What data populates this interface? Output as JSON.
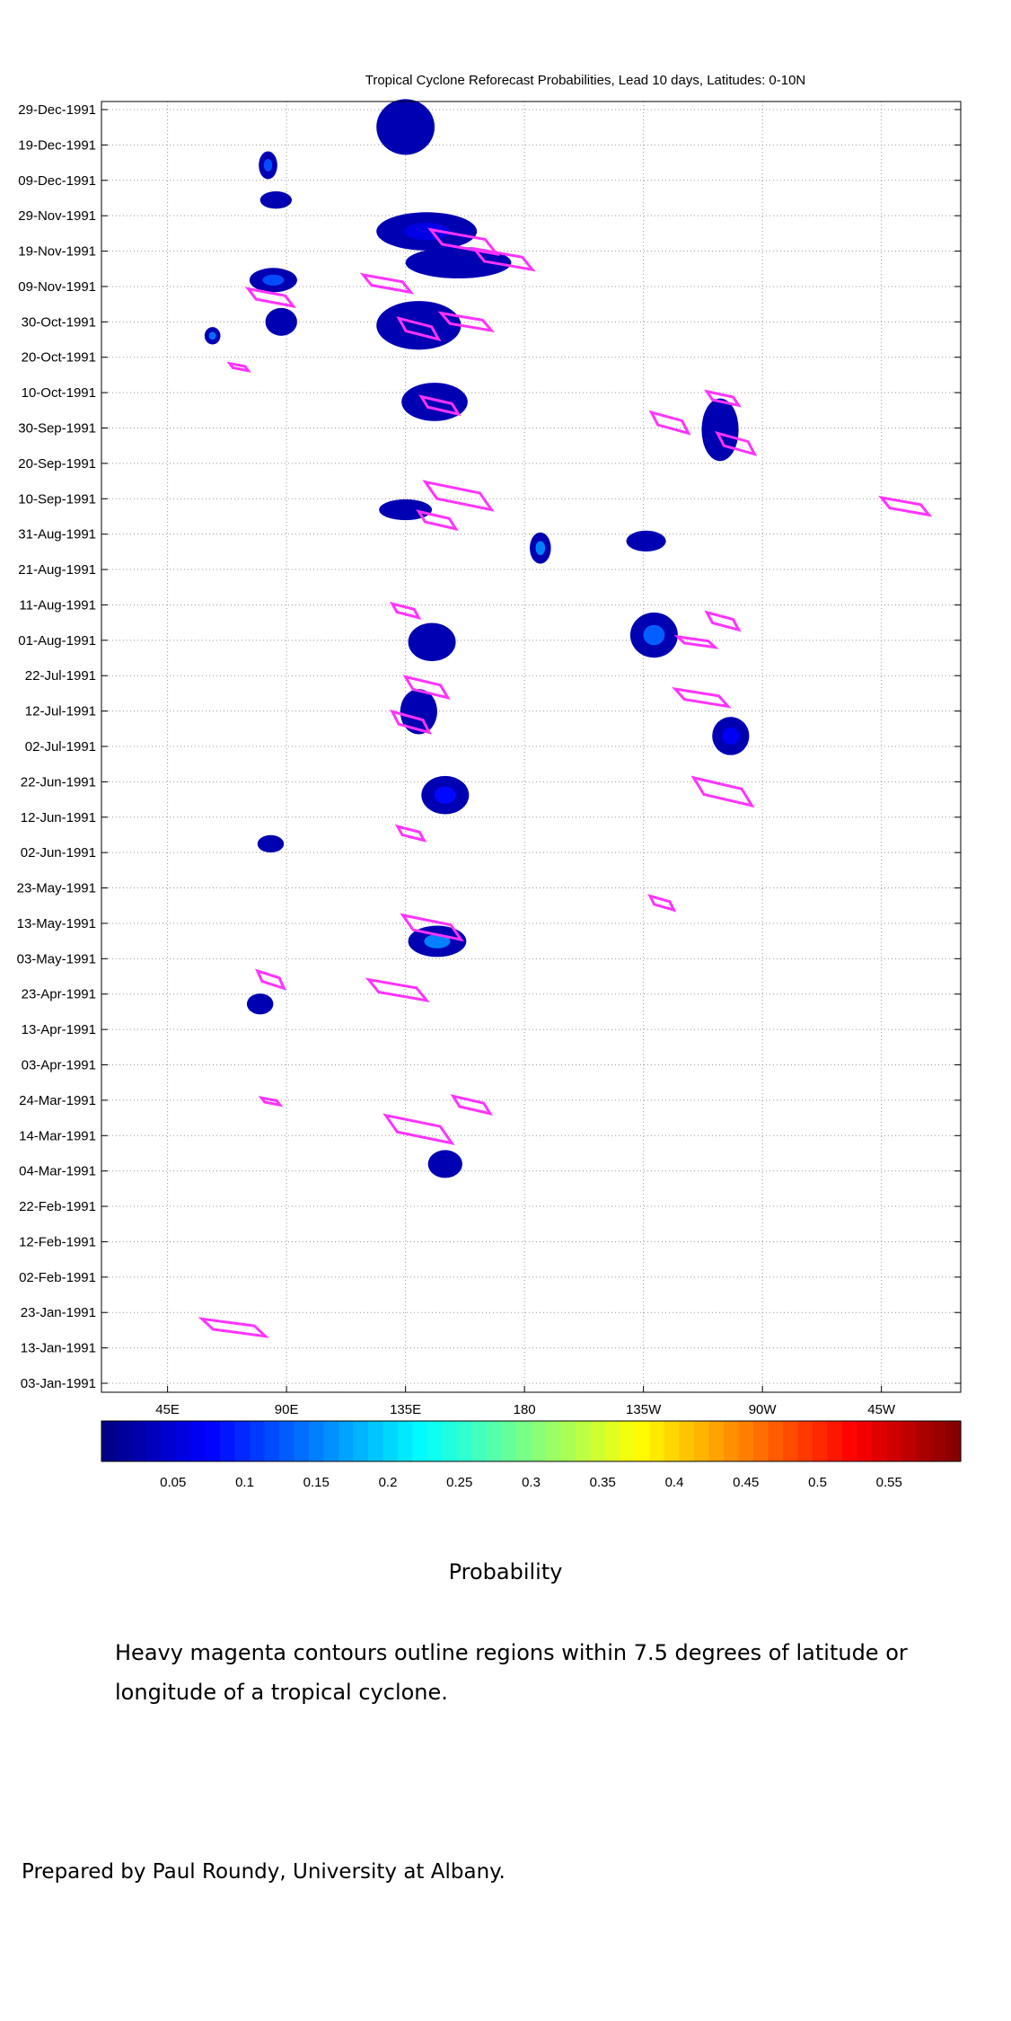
{
  "chart_data": {
    "type": "heatmap",
    "title": "Tropical Cyclone Reforecast Probabilities, Lead 10 days, Latitudes: 0-10N",
    "x_tick_labels": [
      "45E",
      "90E",
      "135E",
      "180",
      "135W",
      "90W",
      "45W"
    ],
    "x_ticks_deg": [
      45,
      90,
      135,
      180,
      225,
      270,
      315
    ],
    "x_range_deg": [
      20,
      345
    ],
    "y_tick_labels": [
      "29-Dec-1991",
      "19-Dec-1991",
      "09-Dec-1991",
      "29-Nov-1991",
      "19-Nov-1991",
      "09-Nov-1991",
      "30-Oct-1991",
      "20-Oct-1991",
      "10-Oct-1991",
      "30-Sep-1991",
      "20-Sep-1991",
      "10-Sep-1991",
      "31-Aug-1991",
      "21-Aug-1991",
      "11-Aug-1991",
      "01-Aug-1991",
      "22-Jul-1991",
      "12-Jul-1991",
      "02-Jul-1991",
      "22-Jun-1991",
      "12-Jun-1991",
      "02-Jun-1991",
      "23-May-1991",
      "13-May-1991",
      "03-May-1991",
      "23-Apr-1991",
      "13-Apr-1991",
      "03-Apr-1991",
      "24-Mar-1991",
      "14-Mar-1991",
      "04-Mar-1991",
      "22-Feb-1991",
      "12-Feb-1991",
      "02-Feb-1991",
      "23-Jan-1991",
      "13-Jan-1991",
      "03-Jan-1991"
    ],
    "y_day_range": [
      0,
      366
    ],
    "grid": true,
    "colorbar": {
      "label": "Probability",
      "tick_labels": [
        "0.05",
        "0.1",
        "0.15",
        "0.2",
        "0.25",
        "0.3",
        "0.35",
        "0.4",
        "0.45",
        "0.5",
        "0.55"
      ],
      "ticks": [
        0.05,
        0.1,
        0.15,
        0.2,
        0.25,
        0.3,
        0.35,
        0.4,
        0.45,
        0.5,
        0.55
      ],
      "range": [
        0.0,
        0.6
      ],
      "levels": 58
    },
    "prob_regions": [
      {
        "lon": 135,
        "day": 361,
        "w": 22,
        "h": 16,
        "p": 0.05
      },
      {
        "lon": 83,
        "day": 350,
        "w": 7,
        "h": 8,
        "p": 0.12
      },
      {
        "lon": 86,
        "day": 340,
        "w": 12,
        "h": 5,
        "p": 0.05
      },
      {
        "lon": 143,
        "day": 331,
        "w": 38,
        "h": 11,
        "p": 0.06
      },
      {
        "lon": 155,
        "day": 322,
        "w": 40,
        "h": 9,
        "p": 0.05
      },
      {
        "lon": 85,
        "day": 317,
        "w": 18,
        "h": 7,
        "p": 0.12
      },
      {
        "lon": 88,
        "day": 305,
        "w": 12,
        "h": 8,
        "p": 0.05
      },
      {
        "lon": 140,
        "day": 304,
        "w": 32,
        "h": 14,
        "p": 0.05
      },
      {
        "lon": 62,
        "day": 301,
        "w": 6,
        "h": 5,
        "p": 0.14
      },
      {
        "lon": 146,
        "day": 282,
        "w": 25,
        "h": 11,
        "p": 0.05
      },
      {
        "lon": 254,
        "day": 274,
        "w": 14,
        "h": 18,
        "p": 0.05
      },
      {
        "lon": 135,
        "day": 251,
        "w": 20,
        "h": 6,
        "p": 0.05
      },
      {
        "lon": 186,
        "day": 240,
        "w": 8,
        "h": 9,
        "p": 0.15
      },
      {
        "lon": 226,
        "day": 242,
        "w": 15,
        "h": 6,
        "p": 0.05
      },
      {
        "lon": 145,
        "day": 213,
        "w": 18,
        "h": 11,
        "p": 0.05
      },
      {
        "lon": 229,
        "day": 215,
        "w": 18,
        "h": 13,
        "p": 0.13
      },
      {
        "lon": 140,
        "day": 193,
        "w": 14,
        "h": 13,
        "p": 0.05
      },
      {
        "lon": 258,
        "day": 186,
        "w": 14,
        "h": 11,
        "p": 0.07
      },
      {
        "lon": 150,
        "day": 169,
        "w": 18,
        "h": 11,
        "p": 0.08
      },
      {
        "lon": 147,
        "day": 127,
        "w": 22,
        "h": 9,
        "p": 0.15
      },
      {
        "lon": 150,
        "day": 63,
        "w": 13,
        "h": 8,
        "p": 0.05
      },
      {
        "lon": 80,
        "day": 109,
        "w": 10,
        "h": 6,
        "p": 0.05
      },
      {
        "lon": 84,
        "day": 155,
        "w": 10,
        "h": 5,
        "p": 0.05
      }
    ],
    "tc_contours": [
      {
        "lon": 157,
        "day": 328,
        "w": 25,
        "h": 7
      },
      {
        "lon": 172,
        "day": 323,
        "w": 22,
        "h": 6
      },
      {
        "lon": 84,
        "day": 312,
        "w": 17,
        "h": 5
      },
      {
        "lon": 128,
        "day": 316,
        "w": 18,
        "h": 5
      },
      {
        "lon": 158,
        "day": 305,
        "w": 19,
        "h": 5
      },
      {
        "lon": 140,
        "day": 303,
        "w": 15,
        "h": 6
      },
      {
        "lon": 72,
        "day": 292,
        "w": 7,
        "h": 2
      },
      {
        "lon": 255,
        "day": 283,
        "w": 12,
        "h": 4
      },
      {
        "lon": 148,
        "day": 281,
        "w": 14,
        "h": 5
      },
      {
        "lon": 235,
        "day": 276,
        "w": 14,
        "h": 6
      },
      {
        "lon": 260,
        "day": 270,
        "w": 14,
        "h": 6
      },
      {
        "lon": 155,
        "day": 255,
        "w": 25,
        "h": 8
      },
      {
        "lon": 324,
        "day": 252,
        "w": 18,
        "h": 5
      },
      {
        "lon": 147,
        "day": 248,
        "w": 14,
        "h": 5
      },
      {
        "lon": 135,
        "day": 222,
        "w": 10,
        "h": 4
      },
      {
        "lon": 255,
        "day": 219,
        "w": 12,
        "h": 5
      },
      {
        "lon": 245,
        "day": 213,
        "w": 14,
        "h": 3
      },
      {
        "lon": 143,
        "day": 200,
        "w": 16,
        "h": 6
      },
      {
        "lon": 137,
        "day": 190,
        "w": 14,
        "h": 6
      },
      {
        "lon": 247,
        "day": 197,
        "w": 20,
        "h": 5
      },
      {
        "lon": 255,
        "day": 170,
        "w": 22,
        "h": 8
      },
      {
        "lon": 137,
        "day": 158,
        "w": 10,
        "h": 4
      },
      {
        "lon": 232,
        "day": 138,
        "w": 9,
        "h": 4
      },
      {
        "lon": 145,
        "day": 131,
        "w": 22,
        "h": 7
      },
      {
        "lon": 132,
        "day": 113,
        "w": 22,
        "h": 6
      },
      {
        "lon": 84,
        "day": 116,
        "w": 10,
        "h": 5
      },
      {
        "lon": 160,
        "day": 80,
        "w": 14,
        "h": 5
      },
      {
        "lon": 84,
        "day": 81,
        "w": 7,
        "h": 2
      },
      {
        "lon": 140,
        "day": 73,
        "w": 25,
        "h": 8
      },
      {
        "lon": 70,
        "day": 16,
        "w": 24,
        "h": 5
      }
    ]
  },
  "probability_label": "Probability",
  "caption": "Heavy magenta contours outline regions within 7.5 degrees of latitude or longitude of a tropical cyclone.",
  "credit": "Prepared by Paul Roundy, University at Albany.",
  "colors": {
    "contour": "#ff33ff",
    "grid": "#999999",
    "frame": "#000000"
  }
}
